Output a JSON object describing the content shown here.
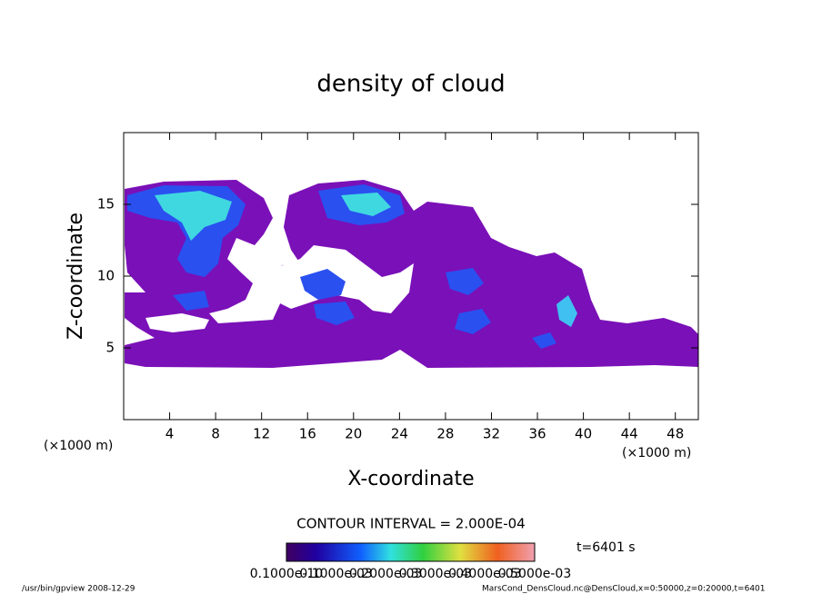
{
  "chart_data": {
    "type": "contour",
    "title": "density of cloud",
    "x_label": "X-coordinate",
    "y_label": "Z-coordinate",
    "x_unit": "(×1000 m)",
    "y_unit": "(×1000 m)",
    "xlim": [
      0,
      50
    ],
    "ylim": [
      0,
      20
    ],
    "xticks": [
      4,
      8,
      12,
      16,
      20,
      24,
      28,
      32,
      36,
      40,
      44,
      48
    ],
    "yticks": [
      5,
      10,
      15
    ],
    "contour_interval": "CONTOUR INTERVAL = 2.000E-04",
    "time_label": "t=6401 s",
    "colorbar_labels": [
      "0.1000e-10",
      "0.1000e-03",
      "0.2000e-03",
      "0.3000e-03",
      "0.4000e-03",
      "0.5000e-03"
    ],
    "footer_left": "/usr/bin/gpview  2008-12-29",
    "footer_right": "MarsCond_DensCloud.nc@DensCloud,x=0:50000,z=0:20000,t=6401"
  }
}
